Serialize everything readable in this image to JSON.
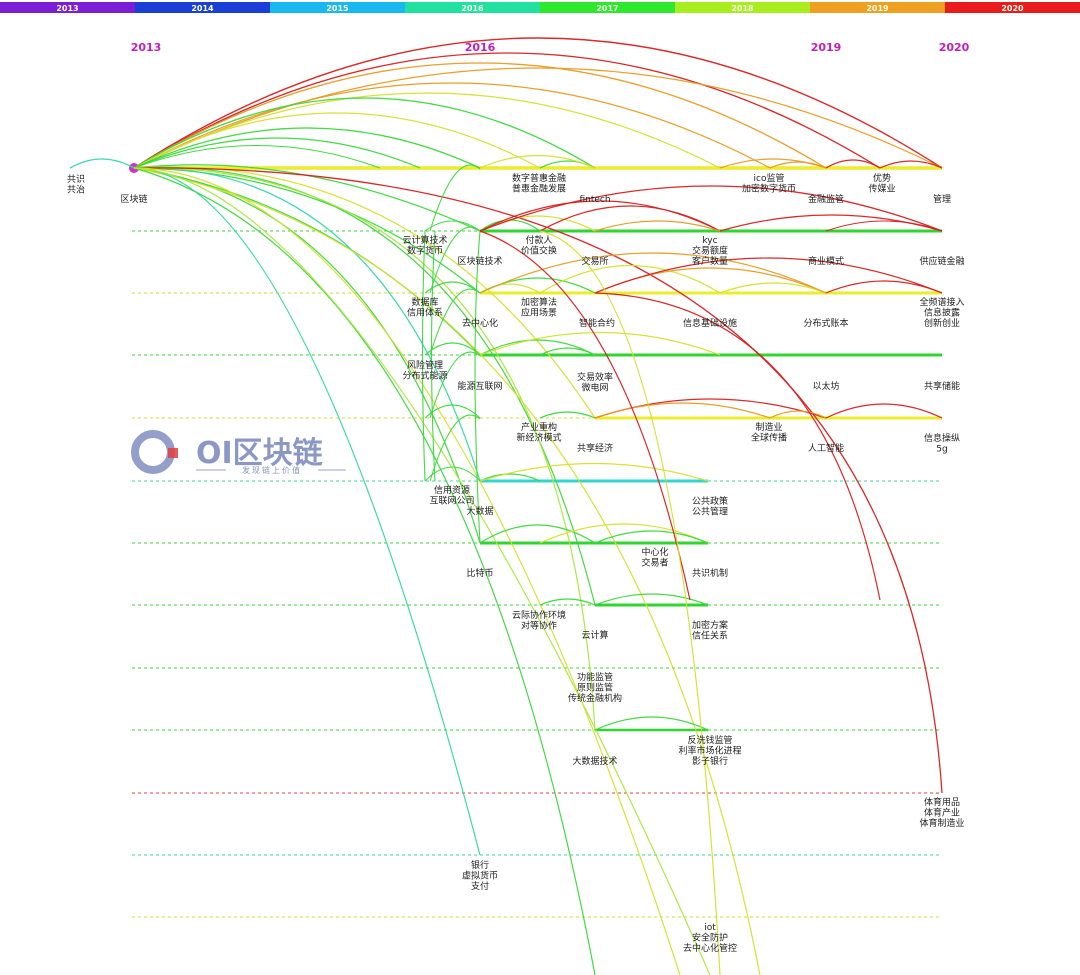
{
  "year_bar": [
    {
      "year": "2013",
      "color": "#7a1fd6"
    },
    {
      "year": "2014",
      "color": "#1b3fd6"
    },
    {
      "year": "2015",
      "color": "#1ab8f0"
    },
    {
      "year": "2016",
      "color": "#22e0a0"
    },
    {
      "year": "2017",
      "color": "#2ee82e"
    },
    {
      "year": "2018",
      "color": "#a8ee1e"
    },
    {
      "year": "2019",
      "color": "#f0a020"
    },
    {
      "year": "2020",
      "color": "#e81c1c"
    }
  ],
  "year_headers": [
    "2013",
    "2016",
    "2019",
    "2020"
  ],
  "watermark": {
    "title": "OI区块链",
    "subtitle": "发现链上价值"
  },
  "timeline_rows": [
    {
      "row": 0,
      "labels": [
        "共识\n共治",
        "区块链",
        "数字普惠金融\n普惠金融发展",
        "fintech",
        "ico监管\n加密数字货币",
        "金融监管",
        "优势\n传媒业",
        "管理"
      ]
    },
    {
      "row": 1,
      "labels": [
        "云计算技术\n数字货币",
        "区块链技术",
        "付款人\n价值交换",
        "交易所",
        "kyc\n交易额度\n客户数量",
        "商业模式",
        "供应链金融"
      ]
    },
    {
      "row": 2,
      "labels": [
        "数据库\n信用体系",
        "去中心化",
        "加密算法\n应用场景",
        "智能合约",
        "信息基础设施",
        "分布式账本",
        "全频谱接入\n信息披露\n创新创业"
      ]
    },
    {
      "row": 3,
      "labels": [
        "风险管理\n分布式能源",
        "能源互联网",
        "交易效率\n微电网",
        "以太坊",
        "共享储能"
      ]
    },
    {
      "row": 4,
      "labels": [
        "产业重构\n新经济模式",
        "共享经济",
        "制造业\n全球传播",
        "人工智能",
        "信息操纵\n5g"
      ]
    },
    {
      "row": 5,
      "labels": [
        "信用资源\n互联网公司",
        "大数据",
        "公共政策\n公共管理"
      ]
    },
    {
      "row": 6,
      "labels": [
        "比特币",
        "中心化\n交易者",
        "共识机制"
      ]
    },
    {
      "row": 7,
      "labels": [
        "云际协作环境\n对等协作",
        "云计算",
        "加密方案\n信任关系"
      ]
    },
    {
      "row": 8,
      "labels": [
        "功能监管\n原则监管\n传统金融机构"
      ]
    },
    {
      "row": 9,
      "labels": [
        "大数据技术",
        "反洗钱监管\n利率市场化进程\n影子银行"
      ]
    },
    {
      "row": 10,
      "labels": [
        "体育用品\n体育产业\n体育制造业"
      ]
    },
    {
      "row": 11,
      "labels": [
        "银行\n虚拟货币\n支付"
      ]
    },
    {
      "row": 12,
      "labels": [
        "iot\n安全防护\n去中心化管控"
      ]
    }
  ]
}
